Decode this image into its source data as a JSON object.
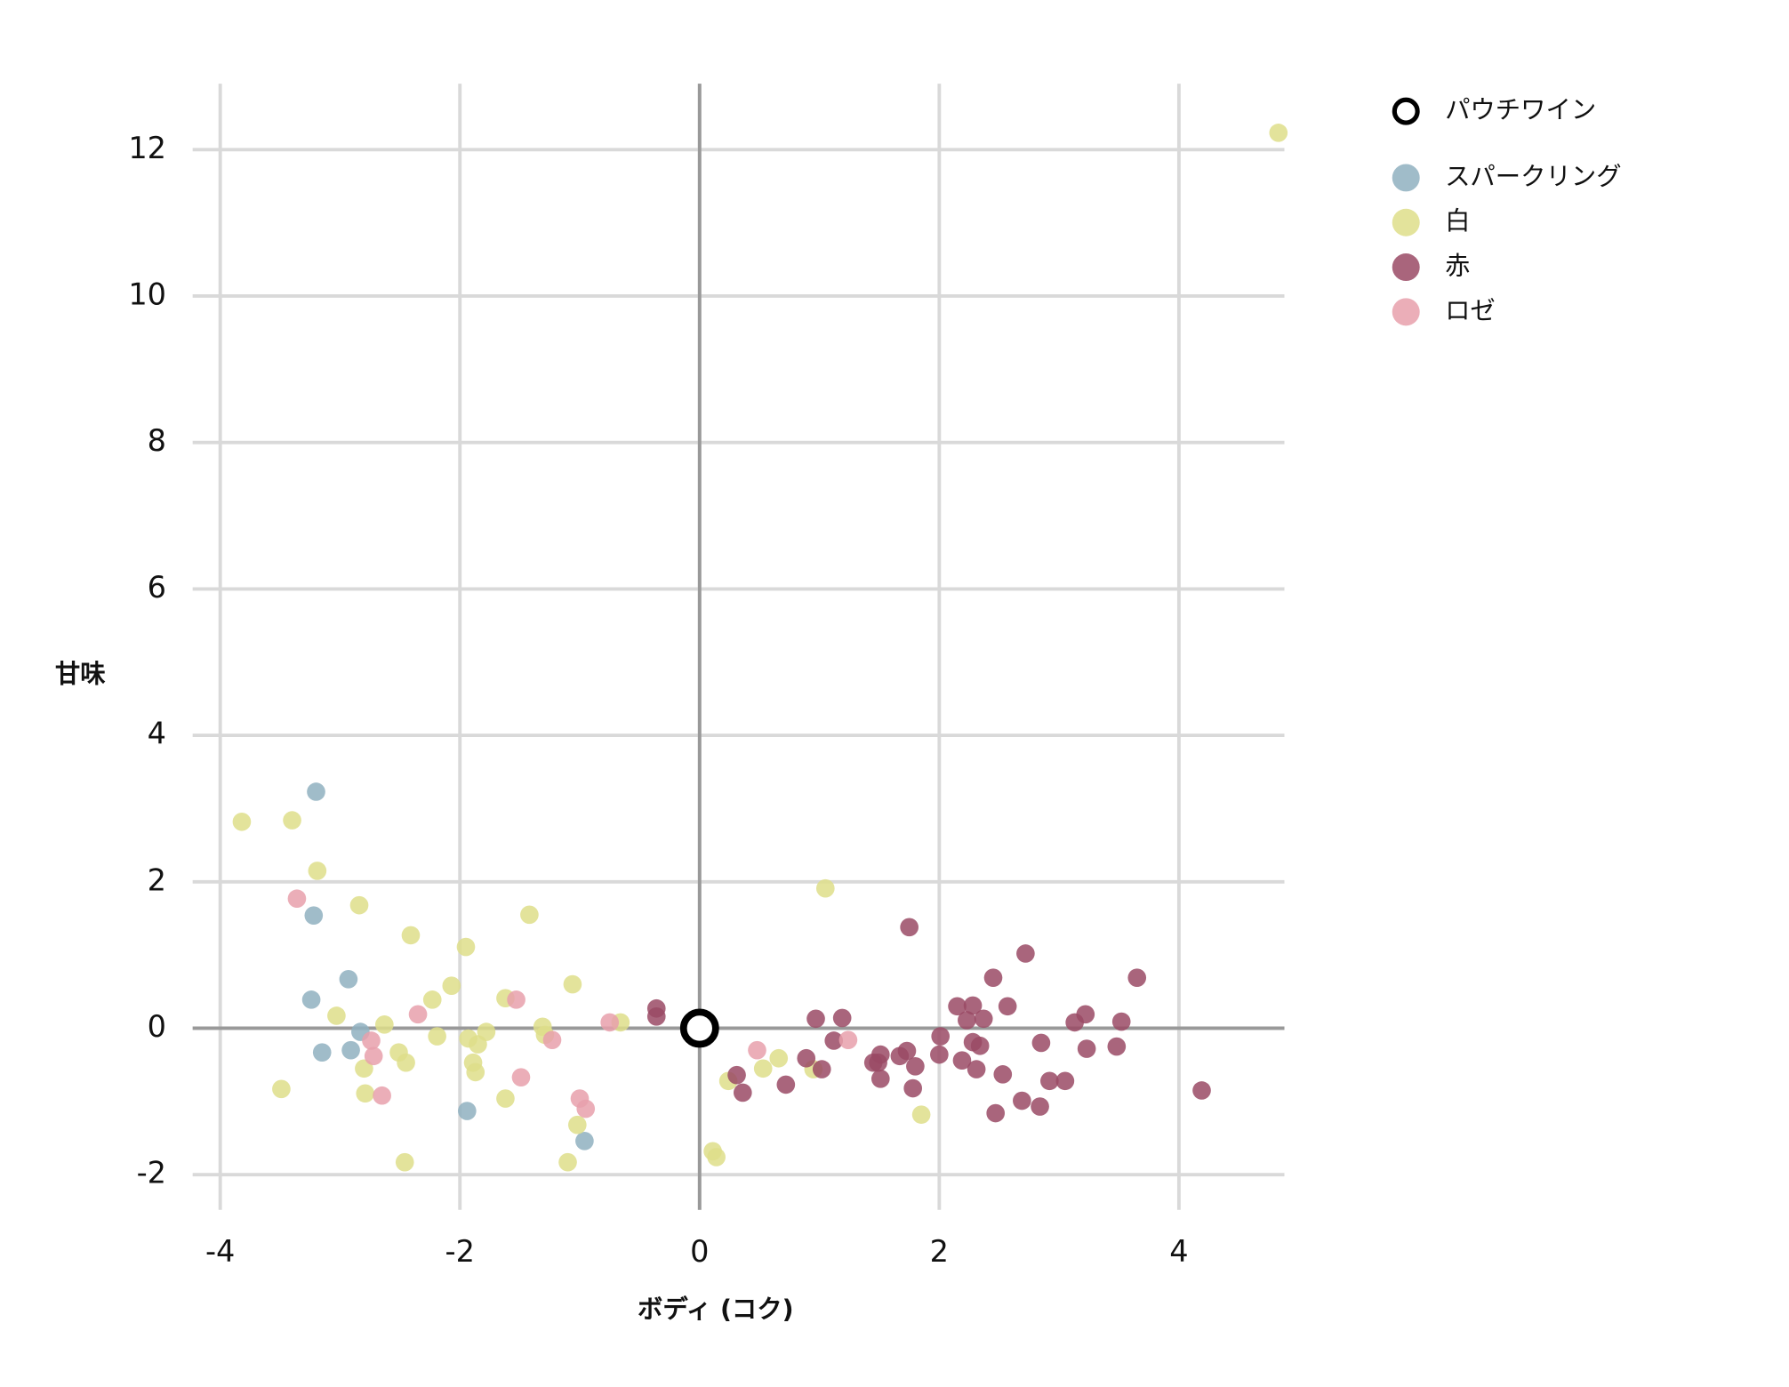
{
  "chart_data": {
    "type": "scatter",
    "xlabel": "ボディ (コク)",
    "ylabel": "甘味",
    "xlim": [
      -4.23,
      4.88
    ],
    "ylim": [
      -2.48,
      12.9
    ],
    "xticks": [
      -4,
      -2,
      0,
      2,
      4
    ],
    "yticks": [
      -2,
      0,
      2,
      4,
      6,
      8,
      10,
      12
    ],
    "grid": true,
    "zero_lines": true,
    "legend": "right",
    "series": [
      {
        "name": "パウチワイン",
        "color": "#000000",
        "marker": "ring",
        "x": [
          0
        ],
        "y": [
          0
        ]
      },
      {
        "name": "スパークリング",
        "color": "#8fb0c0",
        "marker": "dot",
        "x": [
          -3.2,
          -3.22,
          -2.93,
          -3.24,
          -2.83,
          -3.15,
          -2.91,
          -1.94,
          -0.96
        ],
        "y": [
          3.23,
          1.54,
          0.67,
          0.39,
          -0.05,
          -0.33,
          -0.3,
          -1.13,
          -1.54
        ]
      },
      {
        "name": "白",
        "color": "#dede8a",
        "marker": "dot",
        "x": [
          4.83,
          -3.82,
          -3.4,
          -3.19,
          -2.84,
          -2.41,
          -1.95,
          -1.42,
          -1.06,
          -2.07,
          -2.23,
          -3.03,
          -2.63,
          -1.62,
          -1.31,
          -1.29,
          -1.78,
          -2.19,
          -1.93,
          -1.85,
          -2.51,
          -2.45,
          -2.8,
          -1.89,
          -1.87,
          -3.49,
          -2.79,
          -1.62,
          -1.02,
          -2.46,
          -1.1,
          -0.66,
          1.05,
          0.24,
          0.53,
          0.66,
          0.95,
          1.85,
          0.11,
          0.14
        ],
        "y": [
          12.23,
          2.82,
          2.84,
          2.15,
          1.68,
          1.27,
          1.11,
          1.55,
          0.6,
          0.58,
          0.39,
          0.17,
          0.05,
          0.41,
          0.02,
          -0.09,
          -0.05,
          -0.11,
          -0.14,
          -0.22,
          -0.33,
          -0.47,
          -0.55,
          -0.47,
          -0.6,
          -0.83,
          -0.89,
          -0.96,
          -1.32,
          -1.83,
          -1.83,
          0.08,
          1.91,
          -0.72,
          -0.55,
          -0.41,
          -0.56,
          -1.18,
          -1.68,
          -1.76
        ]
      },
      {
        "name": "赤",
        "color": "#9a4a65",
        "marker": "dot",
        "x": [
          -0.36,
          -0.36,
          0.31,
          0.36,
          0.72,
          0.97,
          1.19,
          1.12,
          0.89,
          1.02,
          1.75,
          1.45,
          1.51,
          1.49,
          1.51,
          1.67,
          1.73,
          1.8,
          1.78,
          2.01,
          2.0,
          2.15,
          2.28,
          2.23,
          2.37,
          2.28,
          2.34,
          2.19,
          2.31,
          2.45,
          2.57,
          2.72,
          2.53,
          2.47,
          2.69,
          2.84,
          2.85,
          2.92,
          3.05,
          3.13,
          3.22,
          3.23,
          3.48,
          3.52,
          3.65,
          4.19
        ],
        "y": [
          0.27,
          0.16,
          -0.64,
          -0.88,
          -0.77,
          0.13,
          0.14,
          -0.17,
          -0.41,
          -0.56,
          1.38,
          -0.47,
          -0.36,
          -0.47,
          -0.69,
          -0.38,
          -0.31,
          -0.52,
          -0.82,
          -0.11,
          -0.36,
          0.3,
          0.31,
          0.11,
          0.13,
          -0.19,
          -0.24,
          -0.44,
          -0.56,
          0.69,
          0.3,
          1.02,
          -0.63,
          -1.16,
          -0.99,
          -1.07,
          -0.2,
          -0.72,
          -0.72,
          0.08,
          0.19,
          -0.28,
          -0.25,
          0.09,
          0.69,
          -0.85
        ]
      },
      {
        "name": "ロゼ",
        "color": "#e8a0ab",
        "marker": "dot",
        "x": [
          -3.36,
          -2.74,
          -2.72,
          -2.65,
          -2.35,
          -1.53,
          -1.49,
          -1.23,
          -0.75,
          -1.0,
          -0.95,
          0.48,
          1.24
        ],
        "y": [
          1.77,
          -0.17,
          -0.38,
          -0.92,
          0.19,
          0.39,
          -0.67,
          -0.16,
          0.08,
          -0.96,
          -1.1,
          -0.3,
          -0.16
        ]
      }
    ]
  }
}
